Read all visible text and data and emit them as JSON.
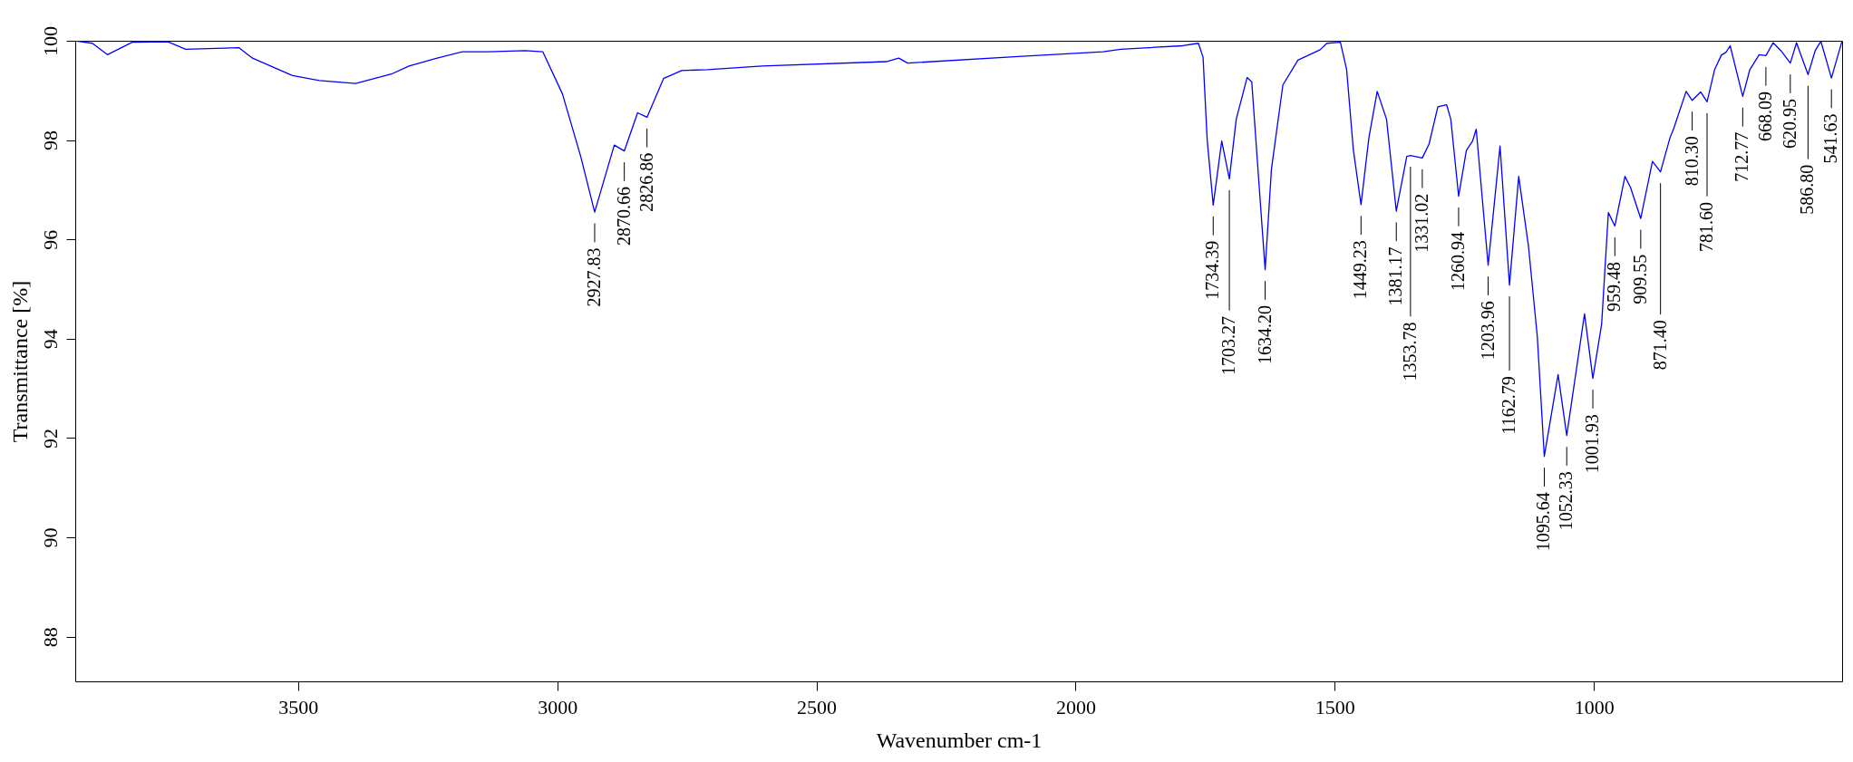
{
  "chart_data": {
    "type": "line",
    "xlabel": "Wavenumber cm-1",
    "ylabel": "Transmittance [%]",
    "color": "#0000ff",
    "xlim": [
      3930,
      521
    ],
    "xticks": [
      3500,
      3000,
      2500,
      2000,
      1500,
      1000
    ],
    "ylim": [
      87.1,
      100
    ],
    "yticks": [
      88,
      90,
      92,
      94,
      96,
      98,
      100
    ],
    "x": [
      3930,
      3897,
      3868,
      3820,
      3751,
      3717,
      3614,
      3588,
      3511,
      3459,
      3389,
      3320,
      3286,
      3235,
      3183,
      3132,
      3062,
      3028,
      2990,
      2955,
      2927.83,
      2890,
      2870.66,
      2845,
      2826.86,
      2795,
      2760,
      2710,
      2605,
      2365,
      2341,
      2324,
      2118,
      1947,
      1913,
      1793,
      1763,
      1754,
      1746,
      1734.39,
      1718,
      1703.27,
      1690,
      1669,
      1660,
      1648,
      1634.2,
      1622,
      1600,
      1571,
      1528,
      1515,
      1489,
      1477,
      1464,
      1449.23,
      1434,
      1418,
      1400,
      1381.17,
      1361,
      1353.78,
      1331.02,
      1318,
      1301,
      1284,
      1276,
      1260.94,
      1246,
      1234,
      1227,
      1203.96,
      1181,
      1162.79,
      1145,
      1126,
      1109,
      1095.64,
      1069,
      1052.33,
      1018,
      1001.93,
      985,
      972,
      959.48,
      940,
      929,
      909.55,
      887,
      871.4,
      853,
      846,
      822,
      810.3,
      794,
      781.6,
      767,
      754,
      745,
      737,
      712.77,
      699,
      681,
      668.09,
      654,
      639,
      620.95,
      609,
      586.8,
      573,
      562,
      541.63,
      521
    ],
    "values": [
      100,
      99.95,
      99.72,
      99.97,
      99.98,
      99.83,
      99.86,
      99.65,
      99.3,
      99.2,
      99.14,
      99.33,
      99.49,
      99.64,
      99.78,
      99.78,
      99.8,
      99.78,
      98.93,
      97.68,
      96.55,
      97.9,
      97.78,
      98.55,
      98.46,
      99.24,
      99.4,
      99.42,
      99.49,
      99.58,
      99.65,
      99.55,
      99.68,
      99.78,
      99.83,
      99.9,
      99.95,
      99.67,
      98.0,
      96.69,
      97.98,
      97.22,
      98.42,
      99.26,
      99.17,
      97.4,
      95.39,
      97.42,
      99.11,
      99.61,
      99.82,
      99.95,
      99.97,
      99.42,
      97.8,
      96.7,
      98.05,
      98.98,
      98.42,
      96.57,
      97.67,
      97.69,
      97.64,
      97.92,
      98.67,
      98.71,
      98.42,
      96.87,
      97.79,
      97.98,
      98.22,
      95.48,
      97.88,
      95.08,
      97.27,
      95.85,
      94.03,
      91.63,
      93.28,
      92.05,
      94.5,
      93.2,
      94.29,
      96.54,
      96.27,
      97.27,
      97.04,
      96.42,
      97.57,
      97.36,
      98.05,
      98.23,
      98.98,
      98.8,
      98.97,
      98.77,
      99.42,
      99.71,
      99.77,
      99.9,
      98.88,
      99.42,
      99.72,
      99.7,
      99.96,
      99.8,
      99.55,
      99.96,
      99.32,
      99.8,
      99.99,
      99.25,
      100
    ],
    "annotations": [
      {
        "text": "2927.83",
        "x": 2927.83,
        "y": 96.55
      },
      {
        "text": "2870.66",
        "x": 2870.66,
        "y": 97.78
      },
      {
        "text": "2826.86",
        "x": 2826.86,
        "y": 98.46
      },
      {
        "text": "1734.39",
        "x": 1734.39,
        "y": 96.69
      },
      {
        "text": "1703.27",
        "x": 1703.27
      },
      {
        "text": "1634.20",
        "x": 1634.2,
        "y": 95.39
      },
      {
        "text": "1449.23",
        "x": 1449.23,
        "y": 96.7
      },
      {
        "text": "1381.17",
        "x": 1381.17,
        "y": 96.57
      },
      {
        "text": "1353.78",
        "x": 1353.78
      },
      {
        "text": "1331.02",
        "x": 1331.02,
        "y": 97.64
      },
      {
        "text": "1260.94",
        "x": 1260.94,
        "y": 96.87
      },
      {
        "text": "1203.96",
        "x": 1203.96,
        "y": 95.48
      },
      {
        "text": "1162.79",
        "x": 1162.79
      },
      {
        "text": "1095.64",
        "x": 1095.64,
        "y": 91.63
      },
      {
        "text": "1052.33",
        "x": 1052.33,
        "y": 92.05
      },
      {
        "text": "1001.93",
        "x": 1001.93,
        "y": 93.2
      },
      {
        "text": "959.48",
        "x": 959.48,
        "y": 96.27
      },
      {
        "text": "909.55",
        "x": 909.55,
        "y": 96.42
      },
      {
        "text": "871.40",
        "x": 871.4
      },
      {
        "text": "810.30",
        "x": 810.3,
        "y": 98.8
      },
      {
        "text": "781.60",
        "x": 781.6
      },
      {
        "text": "712.77",
        "x": 712.77,
        "y": 98.88
      },
      {
        "text": "668.09",
        "x": 668.09,
        "y": 99.7
      },
      {
        "text": "620.95",
        "x": 620.95,
        "y": 99.55
      },
      {
        "text": "586.80",
        "x": 586.8
      },
      {
        "text": "541.63",
        "x": 541.63,
        "y": 99.25
      }
    ]
  }
}
